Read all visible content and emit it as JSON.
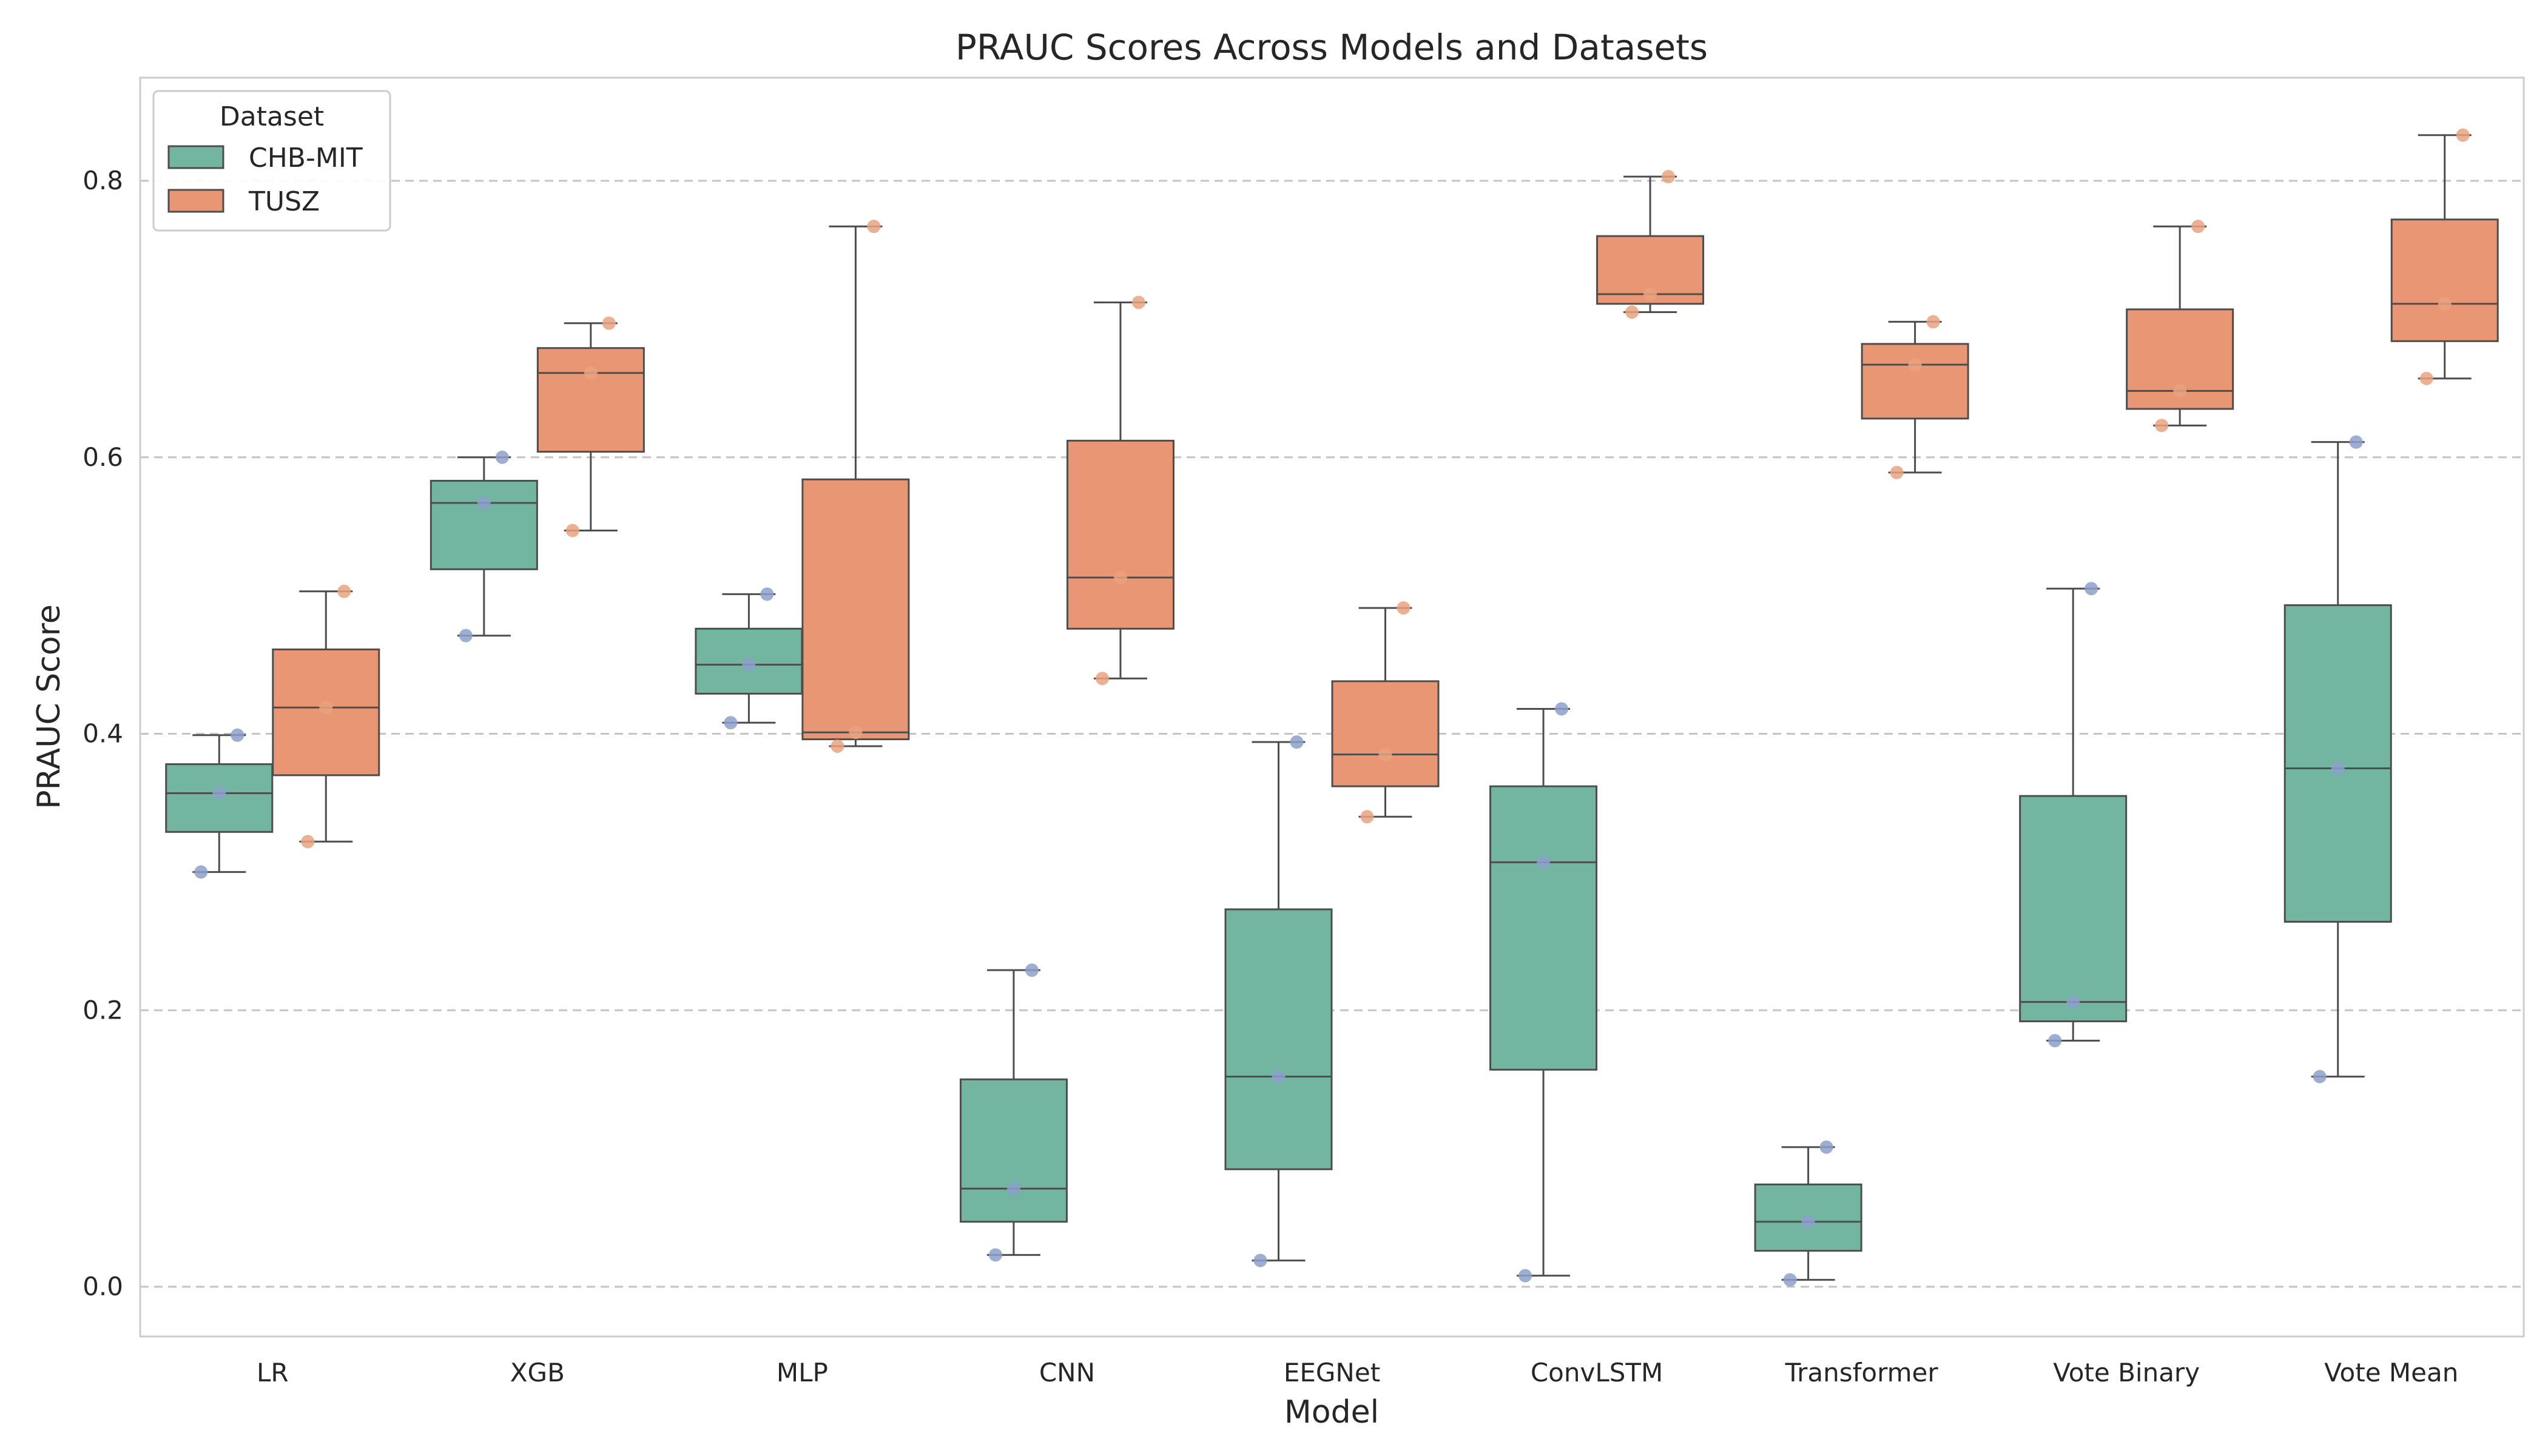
{
  "chart_data": {
    "type": "box",
    "title": "PRAUC Scores Across Models and Datasets",
    "xlabel": "Model",
    "ylabel": "PRAUC Score",
    "ylim": [
      -0.037,
      0.875
    ],
    "yticks": [
      0.0,
      0.2,
      0.4,
      0.6,
      0.8
    ],
    "ytick_labels": [
      "0.0",
      "0.2",
      "0.4",
      "0.6",
      "0.8"
    ],
    "grid": "horizontal-dashed",
    "categories": [
      "LR",
      "XGB",
      "MLP",
      "CNN",
      "EEGNet",
      "ConvLSTM",
      "Transformer",
      "Vote Binary",
      "Vote Mean"
    ],
    "legend": {
      "title": "Dataset",
      "position": "top-left"
    },
    "series": [
      {
        "name": "CHB-MIT",
        "color": "#72b6a1",
        "point_color": "#8da0cb",
        "boxes": [
          {
            "whislo": 0.3,
            "q1": 0.329,
            "med": 0.357,
            "q3": 0.378,
            "whishi": 0.399
          },
          {
            "whislo": 0.471,
            "q1": 0.519,
            "med": 0.567,
            "q3": 0.583,
            "whishi": 0.6
          },
          {
            "whislo": 0.408,
            "q1": 0.429,
            "med": 0.45,
            "q3": 0.476,
            "whishi": 0.501
          },
          {
            "whislo": 0.023,
            "q1": 0.047,
            "med": 0.071,
            "q3": 0.15,
            "whishi": 0.229
          },
          {
            "whislo": 0.019,
            "q1": 0.085,
            "med": 0.152,
            "q3": 0.273,
            "whishi": 0.394
          },
          {
            "whislo": 0.008,
            "q1": 0.157,
            "med": 0.307,
            "q3": 0.362,
            "whishi": 0.418
          },
          {
            "whislo": 0.005,
            "q1": 0.026,
            "med": 0.047,
            "q3": 0.074,
            "whishi": 0.101
          },
          {
            "whislo": 0.178,
            "q1": 0.192,
            "med": 0.206,
            "q3": 0.355,
            "whishi": 0.505
          },
          {
            "whislo": 0.152,
            "q1": 0.264,
            "med": 0.375,
            "q3": 0.493,
            "whishi": 0.611
          }
        ],
        "points": [
          [
            0.3,
            0.357,
            0.399
          ],
          [
            0.471,
            0.567,
            0.6
          ],
          [
            0.408,
            0.45,
            0.501
          ],
          [
            0.023,
            0.071,
            0.229
          ],
          [
            0.019,
            0.152,
            0.394
          ],
          [
            0.008,
            0.307,
            0.418
          ],
          [
            0.005,
            0.047,
            0.101
          ],
          [
            0.178,
            0.206,
            0.505
          ],
          [
            0.152,
            0.375,
            0.611
          ]
        ]
      },
      {
        "name": "TUSZ",
        "color": "#e99675",
        "point_color": "#e9a37f",
        "boxes": [
          {
            "whislo": 0.322,
            "q1": 0.37,
            "med": 0.419,
            "q3": 0.461,
            "whishi": 0.503
          },
          {
            "whislo": 0.547,
            "q1": 0.604,
            "med": 0.661,
            "q3": 0.679,
            "whishi": 0.697
          },
          {
            "whislo": 0.391,
            "q1": 0.396,
            "med": 0.401,
            "q3": 0.584,
            "whishi": 0.767
          },
          {
            "whislo": 0.44,
            "q1": 0.476,
            "med": 0.513,
            "q3": 0.612,
            "whishi": 0.712
          },
          {
            "whislo": 0.34,
            "q1": 0.362,
            "med": 0.385,
            "q3": 0.438,
            "whishi": 0.491
          },
          {
            "whislo": 0.705,
            "q1": 0.711,
            "med": 0.718,
            "q3": 0.76,
            "whishi": 0.803
          },
          {
            "whislo": 0.589,
            "q1": 0.628,
            "med": 0.667,
            "q3": 0.682,
            "whishi": 0.698
          },
          {
            "whislo": 0.623,
            "q1": 0.635,
            "med": 0.648,
            "q3": 0.707,
            "whishi": 0.767
          },
          {
            "whislo": 0.657,
            "q1": 0.684,
            "med": 0.711,
            "q3": 0.772,
            "whishi": 0.833
          }
        ],
        "points": [
          [
            0.322,
            0.419,
            0.503
          ],
          [
            0.547,
            0.661,
            0.697
          ],
          [
            0.391,
            0.401,
            0.767
          ],
          [
            0.44,
            0.513,
            0.712
          ],
          [
            0.34,
            0.385,
            0.491
          ],
          [
            0.705,
            0.718,
            0.803
          ],
          [
            0.589,
            0.667,
            0.698
          ],
          [
            0.623,
            0.648,
            0.767
          ],
          [
            0.657,
            0.711,
            0.833
          ]
        ]
      }
    ]
  }
}
